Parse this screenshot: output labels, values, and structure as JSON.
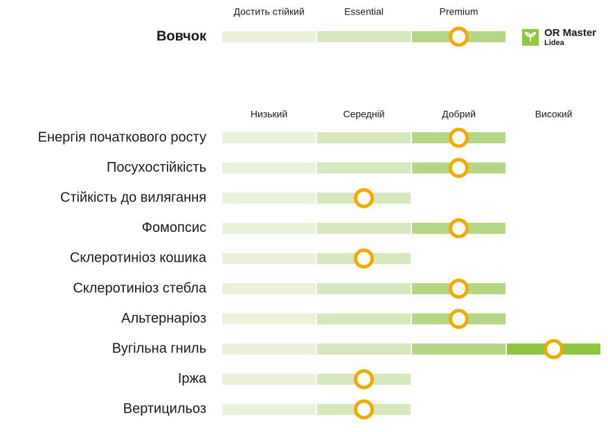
{
  "header": {
    "product": "Вовчок",
    "levels": [
      "Достить стійкий",
      "Essential",
      "Premium"
    ],
    "level": 3
  },
  "logo": {
    "name": "OR Master",
    "brand": "Lidea"
  },
  "ratings": {
    "levels": [
      "Низький",
      "Середній",
      "Добрий",
      "Високий"
    ],
    "rows": [
      {
        "label": "Енергія початкового росту",
        "level": 3
      },
      {
        "label": "Посухостійкість",
        "level": 3
      },
      {
        "label": "Стійкість до вилягання",
        "level": 2
      },
      {
        "label": "Фомопсис",
        "level": 3
      },
      {
        "label": "Склеротиніоз кошика",
        "level": 2
      },
      {
        "label": "Склеротиніоз стебла",
        "level": 3
      },
      {
        "label": "Альтернаріоз",
        "level": 3
      },
      {
        "label": "Вугільна гниль",
        "level": 4
      },
      {
        "label": "Іржа",
        "level": 2
      },
      {
        "label": "Вертицильоз",
        "level": 2
      }
    ]
  }
}
